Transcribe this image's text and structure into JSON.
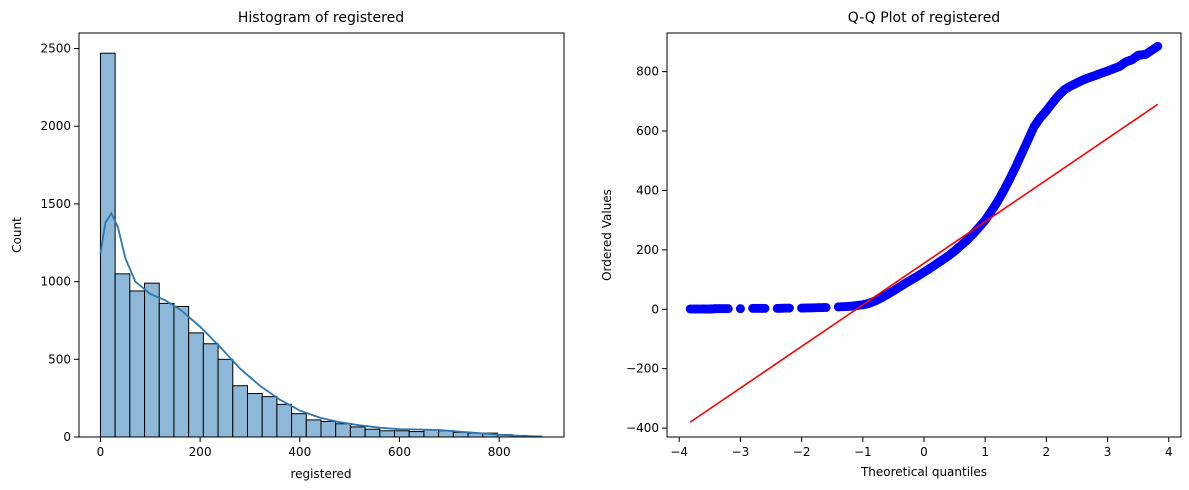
{
  "chart_data": [
    {
      "type": "bar",
      "title": "Histogram of registered",
      "xlabel": "registered",
      "ylabel": "Count",
      "xlim": [
        -43,
        930
      ],
      "ylim": [
        0,
        2600
      ],
      "xticks": [
        "0",
        "200",
        "400",
        "600",
        "800"
      ],
      "yticks": [
        "0",
        "500",
        "1000",
        "1500",
        "2000",
        "2500"
      ],
      "bin_width": 29.5,
      "bin_start": 0,
      "values": [
        2470,
        1050,
        940,
        990,
        860,
        840,
        670,
        600,
        500,
        330,
        280,
        260,
        210,
        150,
        110,
        100,
        85,
        65,
        50,
        40,
        40,
        35,
        45,
        40,
        30,
        25,
        25,
        15,
        10,
        5
      ],
      "kde": {
        "x": [
          0,
          10,
          22,
          35,
          50,
          70,
          100,
          130,
          160,
          200,
          240,
          280,
          320,
          360,
          400,
          440,
          480,
          520,
          560,
          600,
          640,
          680,
          720,
          760,
          800,
          840,
          886
        ],
        "y": [
          1180,
          1380,
          1440,
          1350,
          1150,
          1000,
          920,
          880,
          820,
          710,
          580,
          440,
          330,
          240,
          170,
          125,
          95,
          75,
          60,
          50,
          48,
          45,
          35,
          25,
          15,
          8,
          3
        ]
      },
      "colors": {
        "bar": "#8db8d8",
        "edge": "#000000",
        "kde": "#2a77b4"
      }
    },
    {
      "type": "scatter",
      "title": "Q-Q Plot of registered",
      "xlabel": "Theoretical quantiles",
      "ylabel": "Ordered Values",
      "xlim": [
        -4.2,
        4.2
      ],
      "ylim": [
        -430,
        930
      ],
      "xticks": [
        "−4",
        "−3",
        "−2",
        "−1",
        "0",
        "1",
        "2",
        "3",
        "4"
      ],
      "yticks": [
        "−400",
        "−200",
        "0",
        "200",
        "400",
        "600",
        "800"
      ],
      "points": {
        "x": [
          -3.82,
          -3.62,
          -3.5,
          -3.4,
          -3.2,
          -3.0,
          -2.8,
          -2.6,
          -2.4,
          -2.2,
          -2.0,
          -1.8,
          -1.6,
          -1.4,
          -1.2,
          -1.0,
          -0.9,
          -0.8,
          -0.7,
          -0.6,
          -0.5,
          -0.4,
          -0.3,
          -0.2,
          -0.1,
          0.0,
          0.1,
          0.2,
          0.3,
          0.4,
          0.5,
          0.6,
          0.7,
          0.8,
          0.9,
          1.0,
          1.1,
          1.2,
          1.3,
          1.4,
          1.5,
          1.6,
          1.7,
          1.8,
          1.9,
          2.0,
          2.1,
          2.2,
          2.3,
          2.4,
          2.5,
          2.6,
          2.7,
          2.8,
          2.9,
          3.0,
          3.1,
          3.2,
          3.3,
          3.4,
          3.5,
          3.62,
          3.82
        ],
        "y": [
          1,
          1,
          1,
          2,
          2,
          2,
          3,
          3,
          3,
          4,
          4,
          5,
          6,
          8,
          10,
          15,
          20,
          28,
          38,
          50,
          62,
          75,
          88,
          100,
          112,
          125,
          138,
          152,
          166,
          180,
          196,
          214,
          232,
          253,
          276,
          300,
          330,
          362,
          398,
          438,
          480,
          525,
          570,
          615,
          645,
          668,
          695,
          720,
          740,
          752,
          762,
          772,
          780,
          787,
          795,
          802,
          810,
          818,
          833,
          840,
          855,
          858,
          885
        ]
      },
      "fit_line": {
        "x": [
          -3.82,
          3.82
        ],
        "y": [
          -380,
          690
        ]
      },
      "colors": {
        "points": "#0000ff",
        "line": "#ff0000"
      }
    }
  ]
}
